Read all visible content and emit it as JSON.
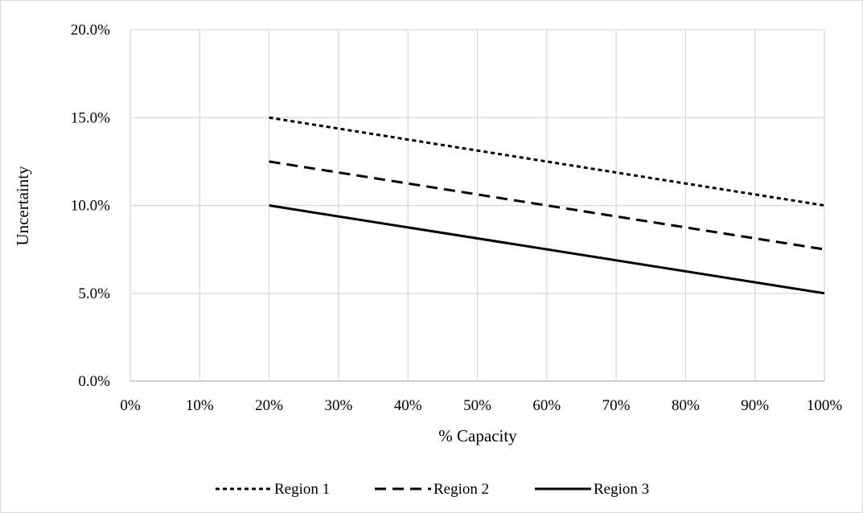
{
  "chart_data": {
    "type": "line",
    "title": "",
    "xlabel": "% Capacity",
    "ylabel": "Uncertainty",
    "xlim": [
      0,
      100
    ],
    "ylim": [
      0,
      20
    ],
    "x_ticks": [
      0,
      10,
      20,
      30,
      40,
      50,
      60,
      70,
      80,
      90,
      100
    ],
    "x_tick_labels": [
      "0%",
      "10%",
      "20%",
      "30%",
      "40%",
      "50%",
      "60%",
      "70%",
      "80%",
      "90%",
      "100%"
    ],
    "y_ticks": [
      0,
      5,
      10,
      15,
      20
    ],
    "y_tick_labels": [
      "0.0%",
      "5.0%",
      "10.0%",
      "15.0%",
      "20.0%"
    ],
    "grid": true,
    "legend_position": "bottom",
    "series": [
      {
        "name": "Region 1",
        "style": "dotted",
        "color": "#000000",
        "x": [
          20,
          100
        ],
        "y": [
          15.0,
          10.0
        ]
      },
      {
        "name": "Region 2",
        "style": "dashed",
        "color": "#000000",
        "x": [
          20,
          100
        ],
        "y": [
          12.5,
          7.5
        ]
      },
      {
        "name": "Region 3",
        "style": "solid",
        "color": "#000000",
        "x": [
          20,
          100
        ],
        "y": [
          10.0,
          5.0
        ]
      }
    ],
    "grid_color": "#d9d9d9"
  }
}
